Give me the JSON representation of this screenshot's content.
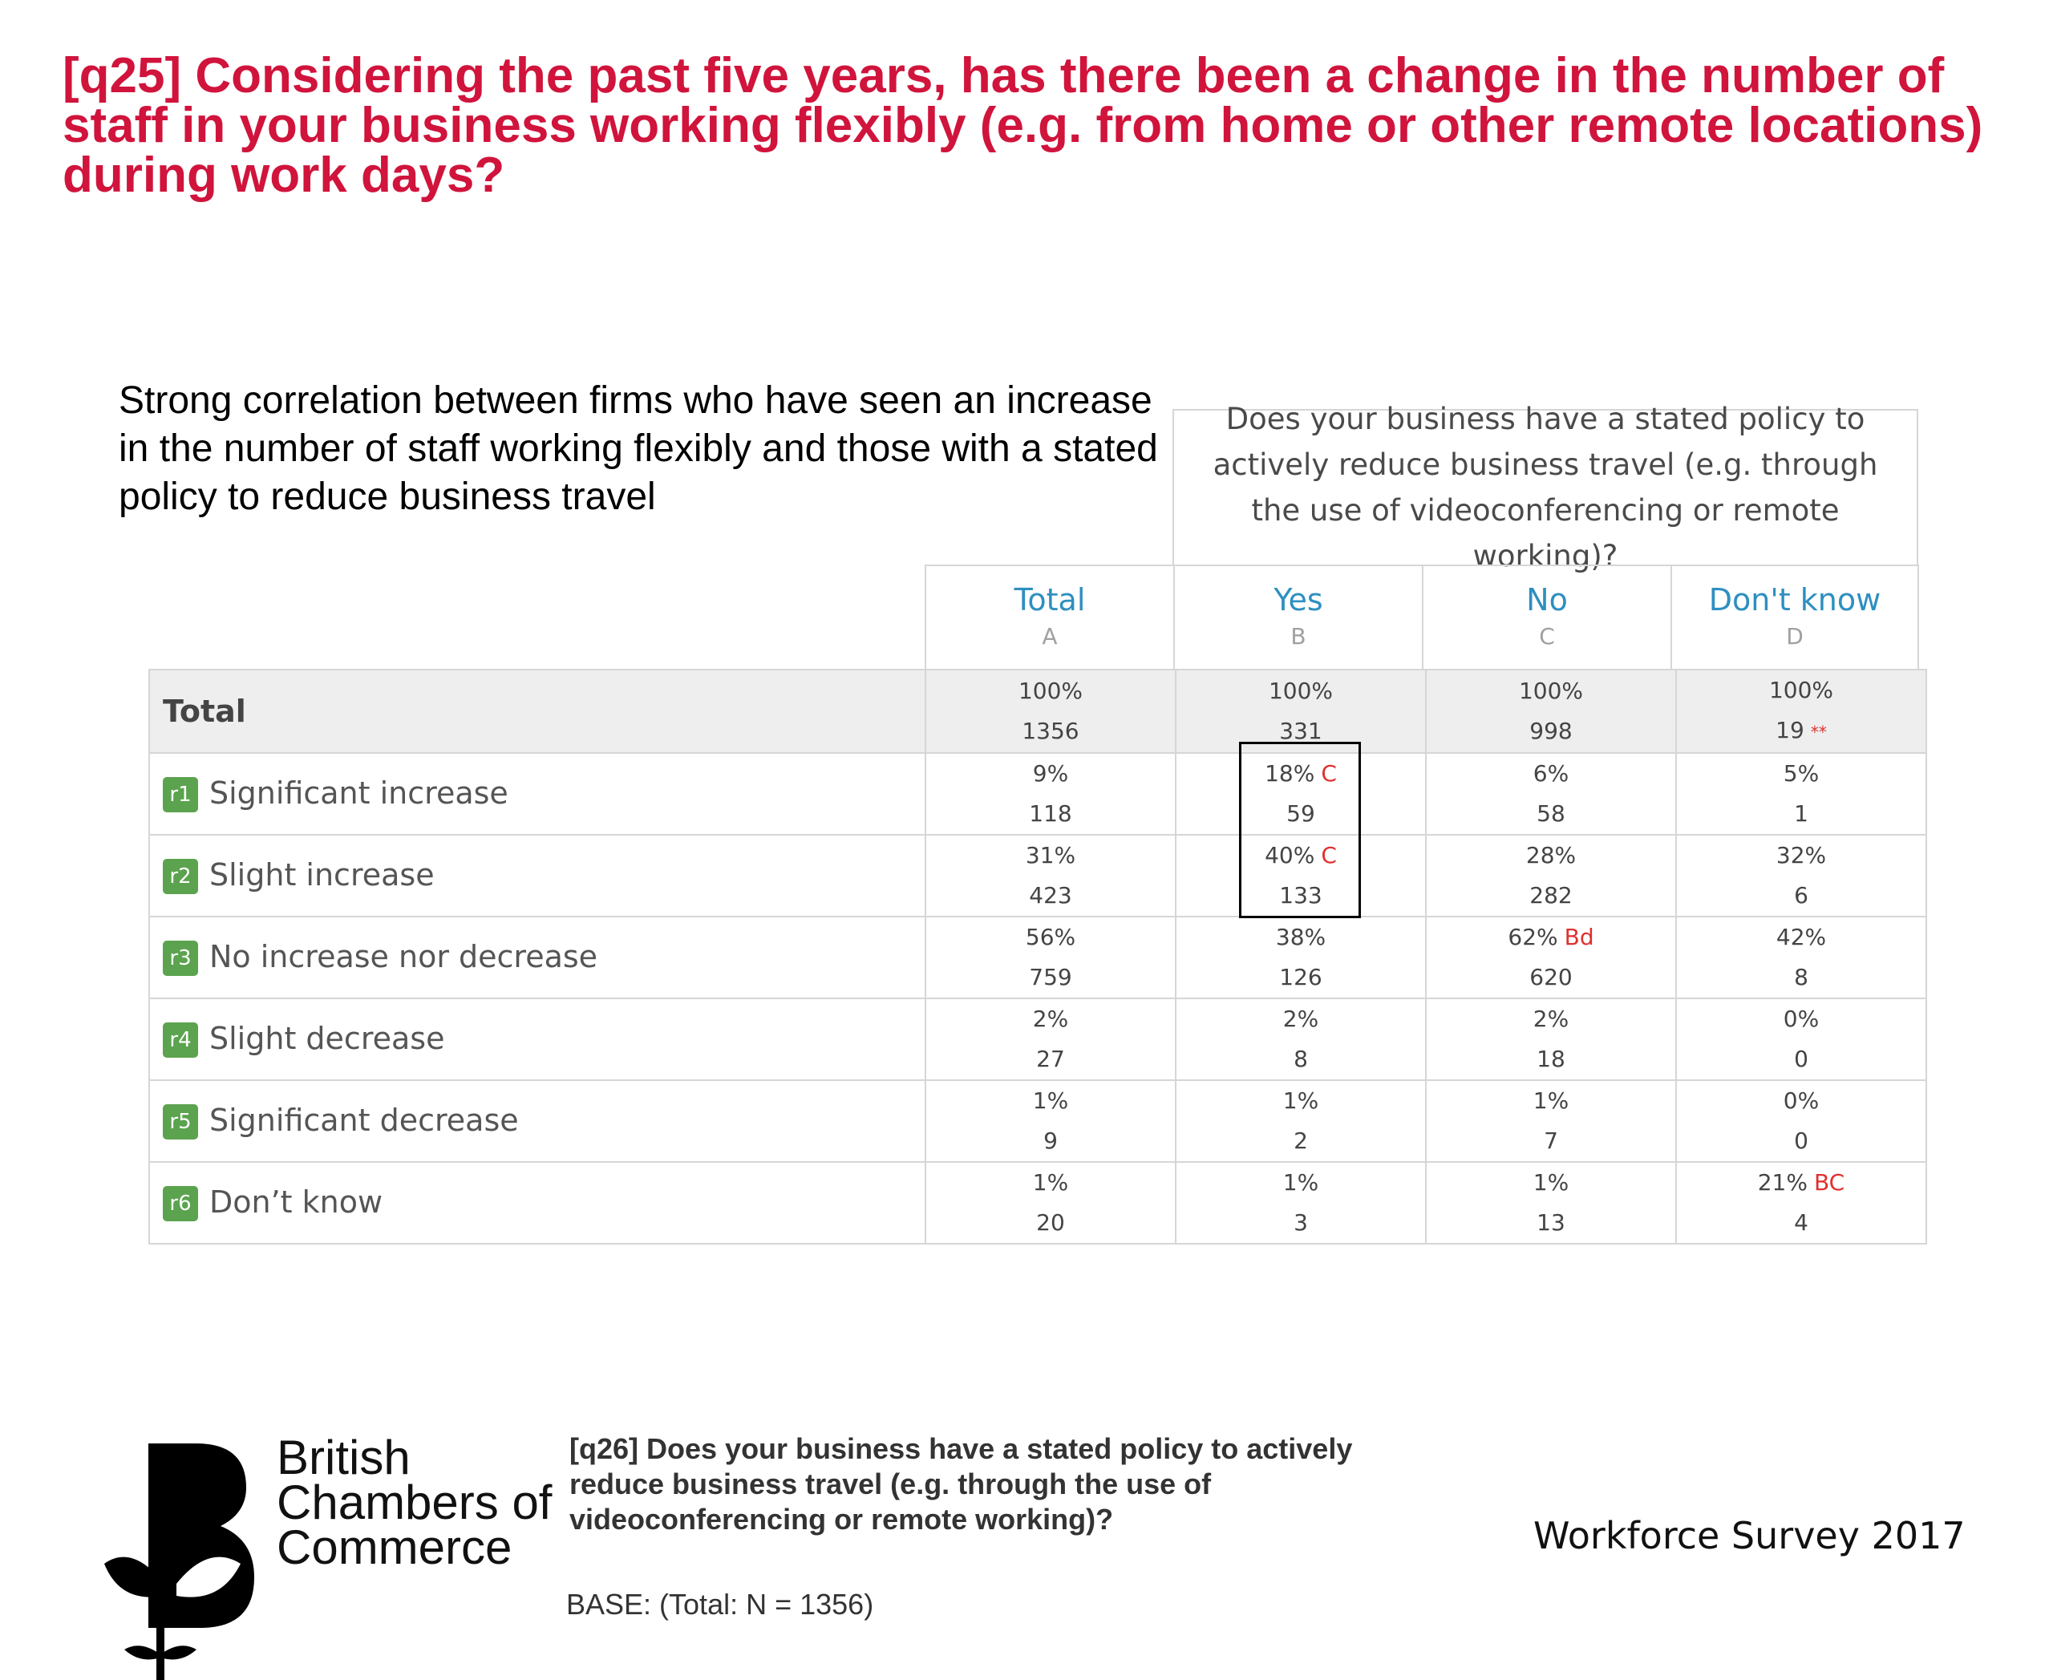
{
  "title": "[q25] Considering the past five years, has there been a change in the number of staff in your business working flexibly (e.g. from home or other remote locations) during work days?",
  "subtitle": "Strong correlation between firms who have seen an increase in the number of staff working flexibly and those with a stated policy to reduce business travel",
  "question_header": "Does your business have a stated policy to actively reduce business travel (e.g. through the use of videoconferencing or remote working)?",
  "columns": [
    {
      "label": "Total",
      "letter": "A"
    },
    {
      "label": "Yes",
      "letter": "B"
    },
    {
      "label": "No",
      "letter": "C"
    },
    {
      "label": "Don't know",
      "letter": "D"
    }
  ],
  "rows": [
    {
      "tag": "",
      "label": "Total",
      "cells": [
        {
          "pct": "100%",
          "sig": "",
          "n": "1356"
        },
        {
          "pct": "100%",
          "sig": "",
          "n": "331"
        },
        {
          "pct": "100%",
          "sig": "",
          "n": "998"
        },
        {
          "pct": "100%",
          "sig": "",
          "n": "19",
          "flag": "**"
        }
      ]
    },
    {
      "tag": "r1",
      "label": "Significant increase",
      "cells": [
        {
          "pct": "9%",
          "sig": "",
          "n": "118"
        },
        {
          "pct": "18%",
          "sig": "C",
          "n": "59"
        },
        {
          "pct": "6%",
          "sig": "",
          "n": "58"
        },
        {
          "pct": "5%",
          "sig": "",
          "n": "1"
        }
      ]
    },
    {
      "tag": "r2",
      "label": "Slight increase",
      "cells": [
        {
          "pct": "31%",
          "sig": "",
          "n": "423"
        },
        {
          "pct": "40%",
          "sig": "C",
          "n": "133"
        },
        {
          "pct": "28%",
          "sig": "",
          "n": "282"
        },
        {
          "pct": "32%",
          "sig": "",
          "n": "6"
        }
      ]
    },
    {
      "tag": "r3",
      "label": "No increase nor decrease",
      "cells": [
        {
          "pct": "56%",
          "sig": "",
          "n": "759"
        },
        {
          "pct": "38%",
          "sig": "",
          "n": "126"
        },
        {
          "pct": "62%",
          "sig": "Bd",
          "n": "620"
        },
        {
          "pct": "42%",
          "sig": "",
          "n": "8"
        }
      ]
    },
    {
      "tag": "r4",
      "label": "Slight decrease",
      "cells": [
        {
          "pct": "2%",
          "sig": "",
          "n": "27"
        },
        {
          "pct": "2%",
          "sig": "",
          "n": "8"
        },
        {
          "pct": "2%",
          "sig": "",
          "n": "18"
        },
        {
          "pct": "0%",
          "sig": "",
          "n": "0"
        }
      ]
    },
    {
      "tag": "r5",
      "label": "Significant decrease",
      "cells": [
        {
          "pct": "1%",
          "sig": "",
          "n": "9"
        },
        {
          "pct": "1%",
          "sig": "",
          "n": "2"
        },
        {
          "pct": "1%",
          "sig": "",
          "n": "7"
        },
        {
          "pct": "0%",
          "sig": "",
          "n": "0"
        }
      ]
    },
    {
      "tag": "r6",
      "label": "Don’t know",
      "cells": [
        {
          "pct": "1%",
          "sig": "",
          "n": "20"
        },
        {
          "pct": "1%",
          "sig": "",
          "n": "3"
        },
        {
          "pct": "1%",
          "sig": "",
          "n": "13"
        },
        {
          "pct": "21%",
          "sig": "BC",
          "n": "4"
        }
      ]
    }
  ],
  "logo": {
    "line1": "British",
    "line2": "Chambers of",
    "line3": "Commerce"
  },
  "footer": {
    "question": "[q26] Does your business have a stated policy to actively reduce business travel (e.g. through the use of videoconferencing or remote working)?",
    "base": "BASE: (Total: N = 1356)",
    "survey": "Workforce Survey 2017"
  },
  "colors": {
    "title": "#d0143c",
    "column_header": "#2e8fc0",
    "significance": "#e03030",
    "row_tag": "#5ba34e"
  }
}
